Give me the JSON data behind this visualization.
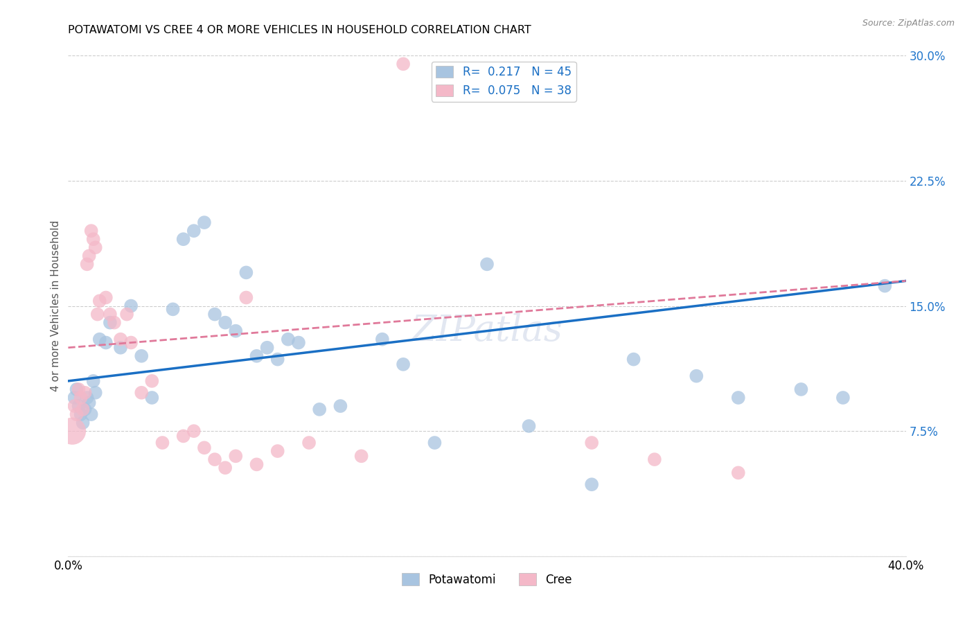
{
  "title": "POTAWATOMI VS CREE 4 OR MORE VEHICLES IN HOUSEHOLD CORRELATION CHART",
  "source": "Source: ZipAtlas.com",
  "ylabel": "4 or more Vehicles in Household",
  "xlim": [
    0.0,
    0.4
  ],
  "ylim": [
    0.0,
    0.3
  ],
  "xticks": [
    0.0,
    0.08,
    0.16,
    0.24,
    0.32,
    0.4
  ],
  "yticks": [
    0.0,
    0.075,
    0.15,
    0.225,
    0.3
  ],
  "xtick_labels": [
    "0.0%",
    "",
    "",
    "",
    "",
    "40.0%"
  ],
  "ytick_labels_right": [
    "",
    "7.5%",
    "15.0%",
    "22.5%",
    "30.0%"
  ],
  "watermark": "ZIPatlas",
  "legend_R1": "0.217",
  "legend_N1": "45",
  "legend_R2": "0.075",
  "legend_N2": "38",
  "potawatomi_color": "#a8c4e0",
  "cree_color": "#f4b8c8",
  "line_potawatomi_color": "#1a6fc4",
  "line_cree_color": "#e0799a",
  "potawatomi_x": [
    0.003,
    0.004,
    0.005,
    0.006,
    0.007,
    0.008,
    0.009,
    0.01,
    0.011,
    0.012,
    0.013,
    0.015,
    0.018,
    0.02,
    0.025,
    0.03,
    0.035,
    0.04,
    0.05,
    0.055,
    0.06,
    0.065,
    0.07,
    0.075,
    0.08,
    0.085,
    0.09,
    0.095,
    0.1,
    0.105,
    0.11,
    0.12,
    0.13,
    0.15,
    0.16,
    0.175,
    0.2,
    0.22,
    0.25,
    0.27,
    0.3,
    0.32,
    0.35,
    0.37,
    0.39
  ],
  "potawatomi_y": [
    0.095,
    0.1,
    0.09,
    0.085,
    0.08,
    0.088,
    0.095,
    0.092,
    0.085,
    0.105,
    0.098,
    0.13,
    0.128,
    0.14,
    0.125,
    0.15,
    0.12,
    0.095,
    0.148,
    0.19,
    0.195,
    0.2,
    0.145,
    0.14,
    0.135,
    0.17,
    0.12,
    0.125,
    0.118,
    0.13,
    0.128,
    0.088,
    0.09,
    0.13,
    0.115,
    0.068,
    0.175,
    0.078,
    0.043,
    0.118,
    0.108,
    0.095,
    0.1,
    0.095,
    0.162
  ],
  "cree_x": [
    0.002,
    0.003,
    0.004,
    0.005,
    0.006,
    0.007,
    0.008,
    0.009,
    0.01,
    0.011,
    0.012,
    0.013,
    0.014,
    0.015,
    0.018,
    0.02,
    0.022,
    0.025,
    0.028,
    0.03,
    0.035,
    0.04,
    0.045,
    0.055,
    0.06,
    0.065,
    0.07,
    0.075,
    0.08,
    0.085,
    0.09,
    0.1,
    0.115,
    0.14,
    0.16,
    0.25,
    0.28,
    0.32
  ],
  "cree_y": [
    0.075,
    0.09,
    0.085,
    0.1,
    0.095,
    0.088,
    0.098,
    0.175,
    0.18,
    0.195,
    0.19,
    0.185,
    0.145,
    0.153,
    0.155,
    0.145,
    0.14,
    0.13,
    0.145,
    0.128,
    0.098,
    0.105,
    0.068,
    0.072,
    0.075,
    0.065,
    0.058,
    0.053,
    0.06,
    0.155,
    0.055,
    0.063,
    0.068,
    0.06,
    0.295,
    0.068,
    0.058,
    0.05
  ],
  "potawatomi_sizes": [
    200,
    200,
    200,
    200,
    200,
    200,
    200,
    200,
    200,
    200,
    200,
    200,
    200,
    200,
    200,
    200,
    200,
    200,
    200,
    200,
    200,
    200,
    200,
    200,
    200,
    200,
    200,
    200,
    200,
    200,
    200,
    200,
    200,
    200,
    200,
    200,
    200,
    200,
    200,
    200,
    200,
    200,
    200,
    200,
    200
  ],
  "cree_sizes": [
    800,
    200,
    200,
    200,
    200,
    200,
    200,
    200,
    200,
    200,
    200,
    200,
    200,
    200,
    200,
    200,
    200,
    200,
    200,
    200,
    200,
    200,
    200,
    200,
    200,
    200,
    200,
    200,
    200,
    200,
    200,
    200,
    200,
    200,
    200,
    200,
    200,
    200
  ]
}
